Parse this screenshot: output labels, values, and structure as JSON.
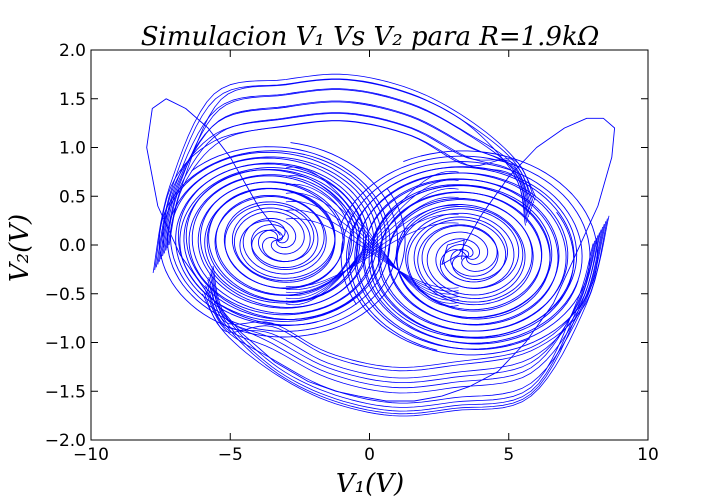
{
  "chart_data": {
    "type": "line",
    "title": "Simulacion V₁ Vs V₂ para R=1.9kΩ",
    "xlabel": "V₁(V)",
    "ylabel": "V₂(V)",
    "xlim": [
      -10,
      10
    ],
    "ylim": [
      -2.0,
      2.0
    ],
    "x_ticks": [
      "−10",
      "−5",
      "0",
      "5",
      "10"
    ],
    "y_ticks": [
      "−2.0",
      "−1.5",
      "−1.0",
      "−0.5",
      "0.0",
      "0.5",
      "1.0",
      "1.5",
      "2.0"
    ],
    "grid": false,
    "legend": false,
    "series": [
      {
        "color": "#0000ff",
        "description": "chaotic double-scroll attractor trajectory",
        "x": [
          -3.2,
          -4.0,
          -4.6,
          -5.0,
          -5.8,
          -6.6,
          -7.3,
          -7.8,
          -8.0,
          -7.6,
          -6.8,
          -5.8,
          -4.6,
          -3.4,
          -2.2,
          -1.2,
          -0.4,
          0.6,
          1.6,
          2.6,
          3.6,
          4.6,
          5.6,
          6.6,
          7.4,
          8.2,
          8.7,
          8.8,
          8.4,
          7.8,
          7.0,
          6.0,
          5.0,
          4.0,
          3.2,
          2.6,
          2.8,
          3.4,
          3.3
        ],
        "y": [
          0.1,
          0.4,
          0.7,
          0.9,
          1.2,
          1.4,
          1.5,
          1.4,
          1.0,
          0.4,
          -0.1,
          -0.5,
          -0.9,
          -1.2,
          -1.4,
          -1.5,
          -1.55,
          -1.6,
          -1.6,
          -1.55,
          -1.45,
          -1.3,
          -1.0,
          -0.6,
          -0.1,
          0.4,
          0.9,
          1.2,
          1.3,
          1.3,
          1.2,
          1.0,
          0.7,
          0.3,
          -0.1,
          -0.2,
          0.0,
          0.05,
          -0.15
        ]
      }
    ]
  }
}
